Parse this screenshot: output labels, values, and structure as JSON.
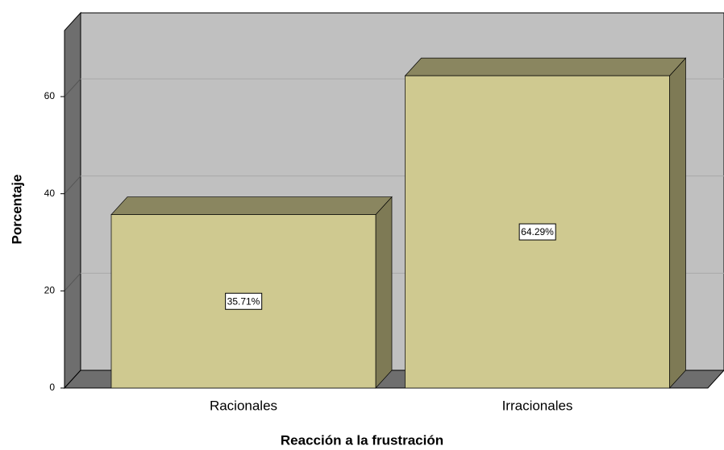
{
  "chart_data": {
    "type": "bar3d",
    "categories": [
      "Racionales",
      "Irracionales"
    ],
    "values": [
      35.71,
      64.29
    ],
    "value_labels": [
      "35.71%",
      "64.29%"
    ],
    "color": "#cfc990",
    "xlabel": "Reacción a la frustración",
    "ylabel": "Porcentaje",
    "ylim": [
      0,
      73.6
    ],
    "yticks": [
      0,
      20,
      40,
      60
    ],
    "grid": true
  }
}
